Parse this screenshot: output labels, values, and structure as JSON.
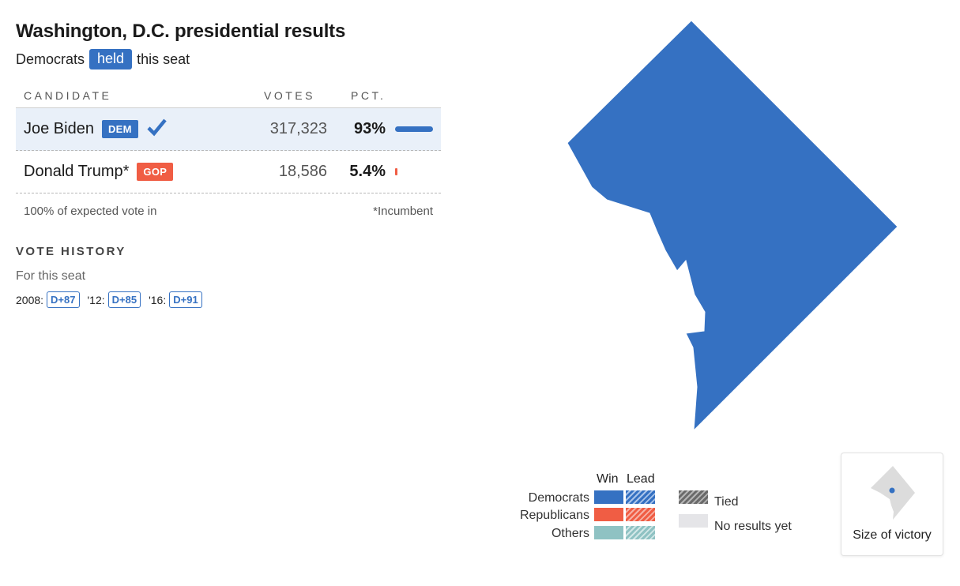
{
  "header": {
    "title": "Washington, D.C. presidential results",
    "subtitle_prefix": "Democrats",
    "subtitle_pill": "held",
    "subtitle_suffix": "this seat"
  },
  "table": {
    "columns": {
      "candidate": "CANDIDATE",
      "votes": "VOTES",
      "pct": "PCT."
    },
    "rows": [
      {
        "name": "Joe Biden",
        "party": "DEM",
        "votes": "317,323",
        "pct": "93%",
        "share": 0.93,
        "winner": true
      },
      {
        "name": "Donald Trump*",
        "party": "GOP",
        "votes": "18,586",
        "pct": "5.4%",
        "share": 0.054,
        "winner": false
      }
    ],
    "footer_left": "100% of expected vote in",
    "footer_right": "*Incumbent"
  },
  "vote_history": {
    "title": "VOTE HISTORY",
    "subtitle": "For this seat",
    "entries": [
      {
        "year": "2008:",
        "margin": "D+87"
      },
      {
        "year": "'12:",
        "margin": "D+85"
      },
      {
        "year": "'16:",
        "margin": "D+91"
      }
    ]
  },
  "legend": {
    "win_header": "Win",
    "lead_header": "Lead",
    "parties": [
      "Democrats",
      "Republicans",
      "Others"
    ],
    "tied": "Tied",
    "no_results": "No results yet"
  },
  "size_toggle": {
    "label": "Size of victory"
  },
  "colors": {
    "democrat": "#3571c2",
    "republican": "#f05d44",
    "other": "#8fc2c3",
    "no_results": "#e5e5e8"
  },
  "icons": {
    "winner": "checkmark-icon",
    "size_of_victory": "dc-outline-icon"
  }
}
